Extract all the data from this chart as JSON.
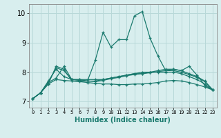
{
  "xlabel": "Humidex (Indice chaleur)",
  "ylabel": "",
  "bg_color": "#d8eeee",
  "grid_color": "#b8d8d8",
  "line_color": "#1a7a6e",
  "xlim": [
    -0.5,
    23.5
  ],
  "ylim": [
    6.8,
    10.3
  ],
  "yticks": [
    7,
    8,
    9,
    10
  ],
  "xticks": [
    0,
    1,
    2,
    3,
    4,
    5,
    6,
    7,
    8,
    9,
    10,
    11,
    12,
    13,
    14,
    15,
    16,
    17,
    18,
    19,
    20,
    21,
    22,
    23
  ],
  "series": [
    [
      7.1,
      7.3,
      7.6,
      8.2,
      8.1,
      7.7,
      7.7,
      7.7,
      8.4,
      9.35,
      8.85,
      9.1,
      9.1,
      9.9,
      10.05,
      9.15,
      8.55,
      8.05,
      8.1,
      8.05,
      8.2,
      7.9,
      7.55,
      7.4
    ],
    [
      7.1,
      7.3,
      7.65,
      8.15,
      8.05,
      7.75,
      7.75,
      7.75,
      7.75,
      7.75,
      7.8,
      7.85,
      7.9,
      7.95,
      8.0,
      8.0,
      8.0,
      8.0,
      8.0,
      7.95,
      7.85,
      7.75,
      7.6,
      7.4
    ],
    [
      7.1,
      7.3,
      7.65,
      7.8,
      8.2,
      7.75,
      7.75,
      7.7,
      7.7,
      7.75,
      7.8,
      7.85,
      7.9,
      7.95,
      7.95,
      8.0,
      8.05,
      8.1,
      8.1,
      8.05,
      7.95,
      7.85,
      7.7,
      7.4
    ],
    [
      7.1,
      7.3,
      7.7,
      8.1,
      7.85,
      7.75,
      7.72,
      7.7,
      7.68,
      7.72,
      7.78,
      7.82,
      7.88,
      7.92,
      7.95,
      7.98,
      8.02,
      8.05,
      8.05,
      8.0,
      7.92,
      7.82,
      7.68,
      7.4
    ],
    [
      7.1,
      7.3,
      7.6,
      7.75,
      7.72,
      7.7,
      7.68,
      7.65,
      7.62,
      7.6,
      7.6,
      7.58,
      7.58,
      7.6,
      7.6,
      7.62,
      7.65,
      7.7,
      7.72,
      7.7,
      7.65,
      7.58,
      7.5,
      7.4
    ]
  ]
}
